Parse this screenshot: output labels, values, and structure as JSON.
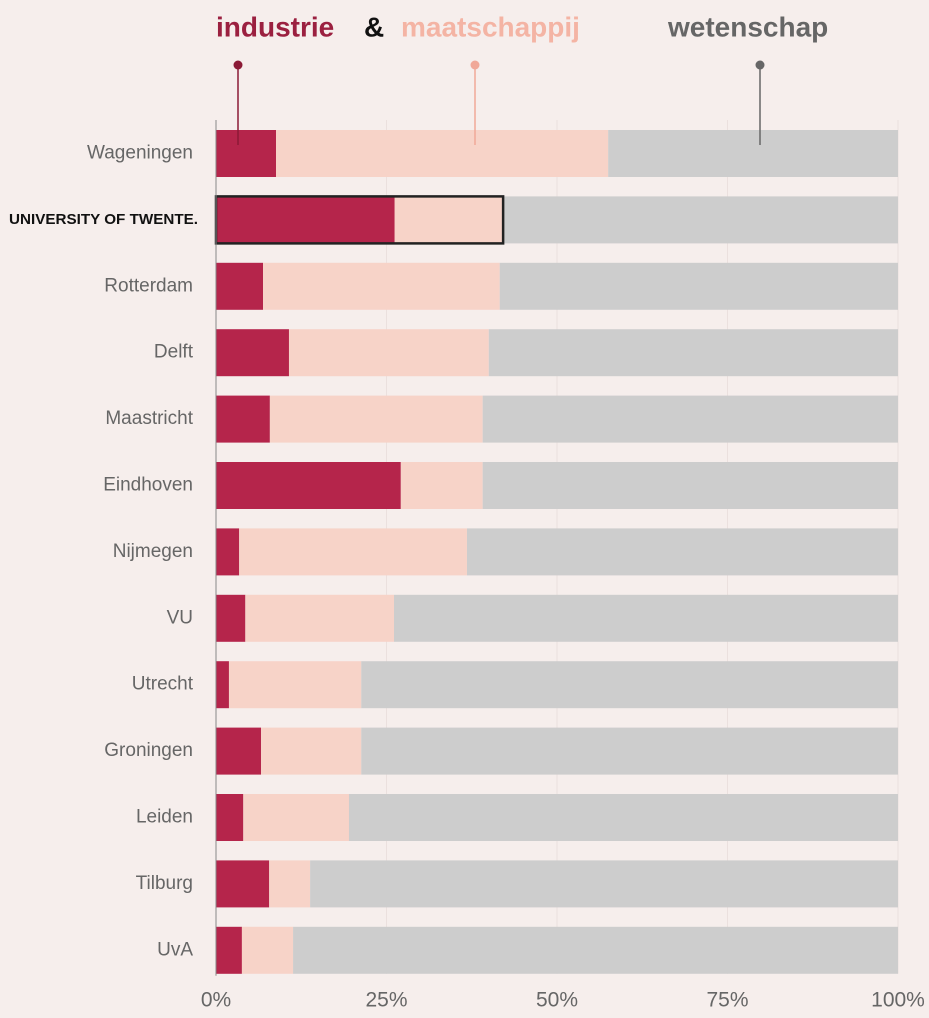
{
  "chart_data": {
    "type": "stacked-bar-horizontal",
    "categories": [
      "Wageningen",
      "UNIVERSITY OF TWENTE.",
      "Rotterdam",
      "Delft",
      "Maastricht",
      "Eindhoven",
      "Nijmegen",
      "VU",
      "Utrecht",
      "Groningen",
      "Leiden",
      "Tilburg",
      "UvA"
    ],
    "series": [
      {
        "name": "industrie",
        "color": "#b5254b",
        "label_color": "#9b2040",
        "values": [
          8.8,
          26.2,
          6.9,
          10.7,
          7.9,
          27.1,
          3.4,
          4.3,
          1.9,
          6.6,
          4.0,
          7.8,
          3.8
        ]
      },
      {
        "name": "maatschappij",
        "color": "#f7d3c8",
        "label_color": "#f4b4a4",
        "values": [
          48.7,
          15.9,
          34.7,
          29.3,
          31.2,
          12.0,
          33.4,
          21.8,
          19.4,
          14.7,
          15.5,
          6.0,
          7.5
        ]
      },
      {
        "name": "wetenschap",
        "color": "#cdcdcd",
        "label_color": "#666666",
        "values": [
          42.5,
          57.9,
          58.4,
          60.0,
          60.9,
          60.9,
          63.2,
          73.9,
          78.7,
          78.7,
          80.5,
          86.2,
          88.7
        ]
      }
    ],
    "legend_separator": "&",
    "highlight": "UNIVERSITY OF TWENTE.",
    "xlim": [
      0,
      100
    ],
    "xticks": [
      {
        "value": 0,
        "label": "0%"
      },
      {
        "value": 25,
        "label": "25%"
      },
      {
        "value": 50,
        "label": "50%"
      },
      {
        "value": 75,
        "label": "75%"
      },
      {
        "value": 100,
        "label": "100%"
      }
    ],
    "grid": true
  }
}
